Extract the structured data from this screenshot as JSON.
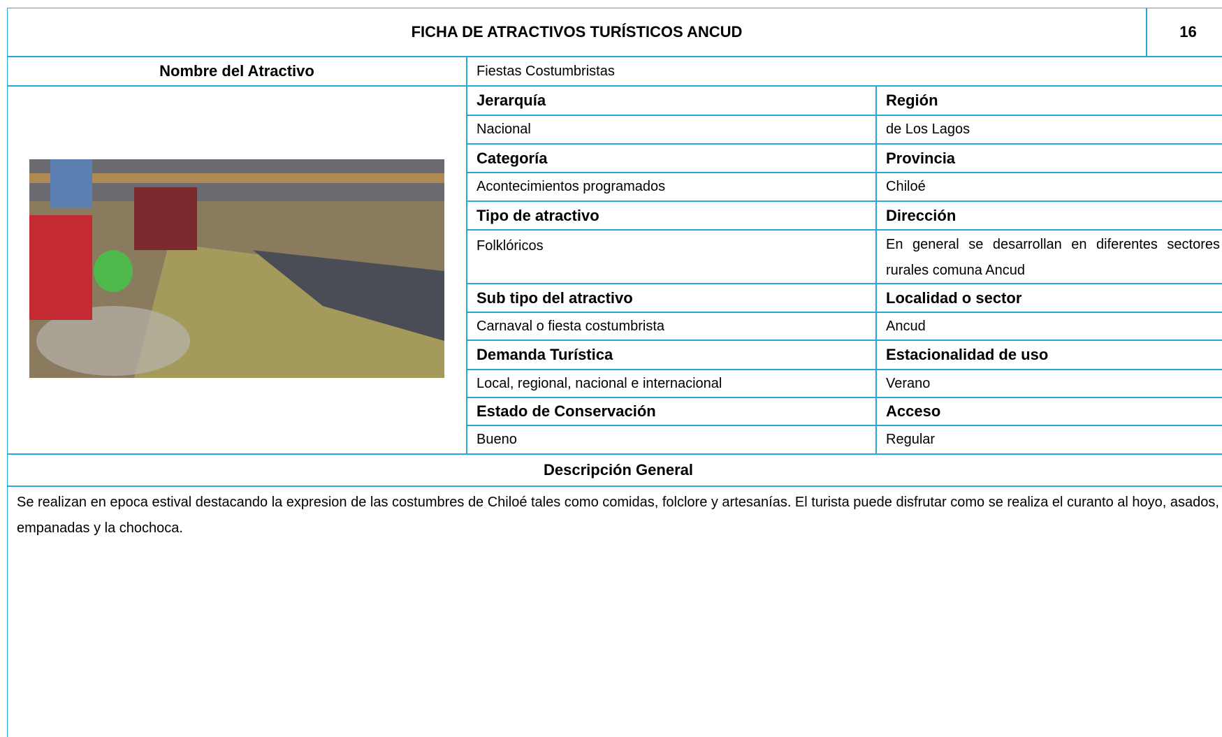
{
  "header": {
    "title": "FICHA DE ATRACTIVOS TURÍSTICOS ANCUD",
    "page_number": "16"
  },
  "name_label": "Nombre del Atractivo",
  "name_value": "Fiestas Costumbristas",
  "grid": {
    "rows": [
      {
        "left_label": "Jerarquía",
        "left_value": "Nacional",
        "right_label": "Región",
        "right_value": "de Los Lagos"
      },
      {
        "left_label": "Categoría",
        "left_value": "Acontecimientos programados",
        "right_label": "Provincia",
        "right_value": "Chiloé"
      },
      {
        "left_label": "Tipo de atractivo",
        "left_value": "Folklóricos",
        "right_label": "Dirección",
        "right_value": "En general se desarrollan en diferentes sectores rurales comuna Ancud"
      },
      {
        "left_label": "Sub tipo del atractivo",
        "left_value": "Carnaval o fiesta costumbrista",
        "right_label": "Localidad o sector",
        "right_value": "Ancud"
      },
      {
        "left_label": "Demanda Turística",
        "left_value": "Local, regional, nacional e internacional",
        "right_label": "Estacionalidad de uso",
        "right_value": "Verano"
      },
      {
        "left_label": "Estado de Conservación",
        "left_value": "Bueno",
        "right_label": "Acceso",
        "right_value": "Regular"
      }
    ]
  },
  "description": {
    "heading": "Descripción General",
    "text": "Se realizan en epoca estival destacando la expresion de las costumbres de Chiloé tales como comidas, folclore y artesanías. El turista puede disfrutar como se realiza el curanto al hoyo, asados, empanadas y la chochoca."
  }
}
